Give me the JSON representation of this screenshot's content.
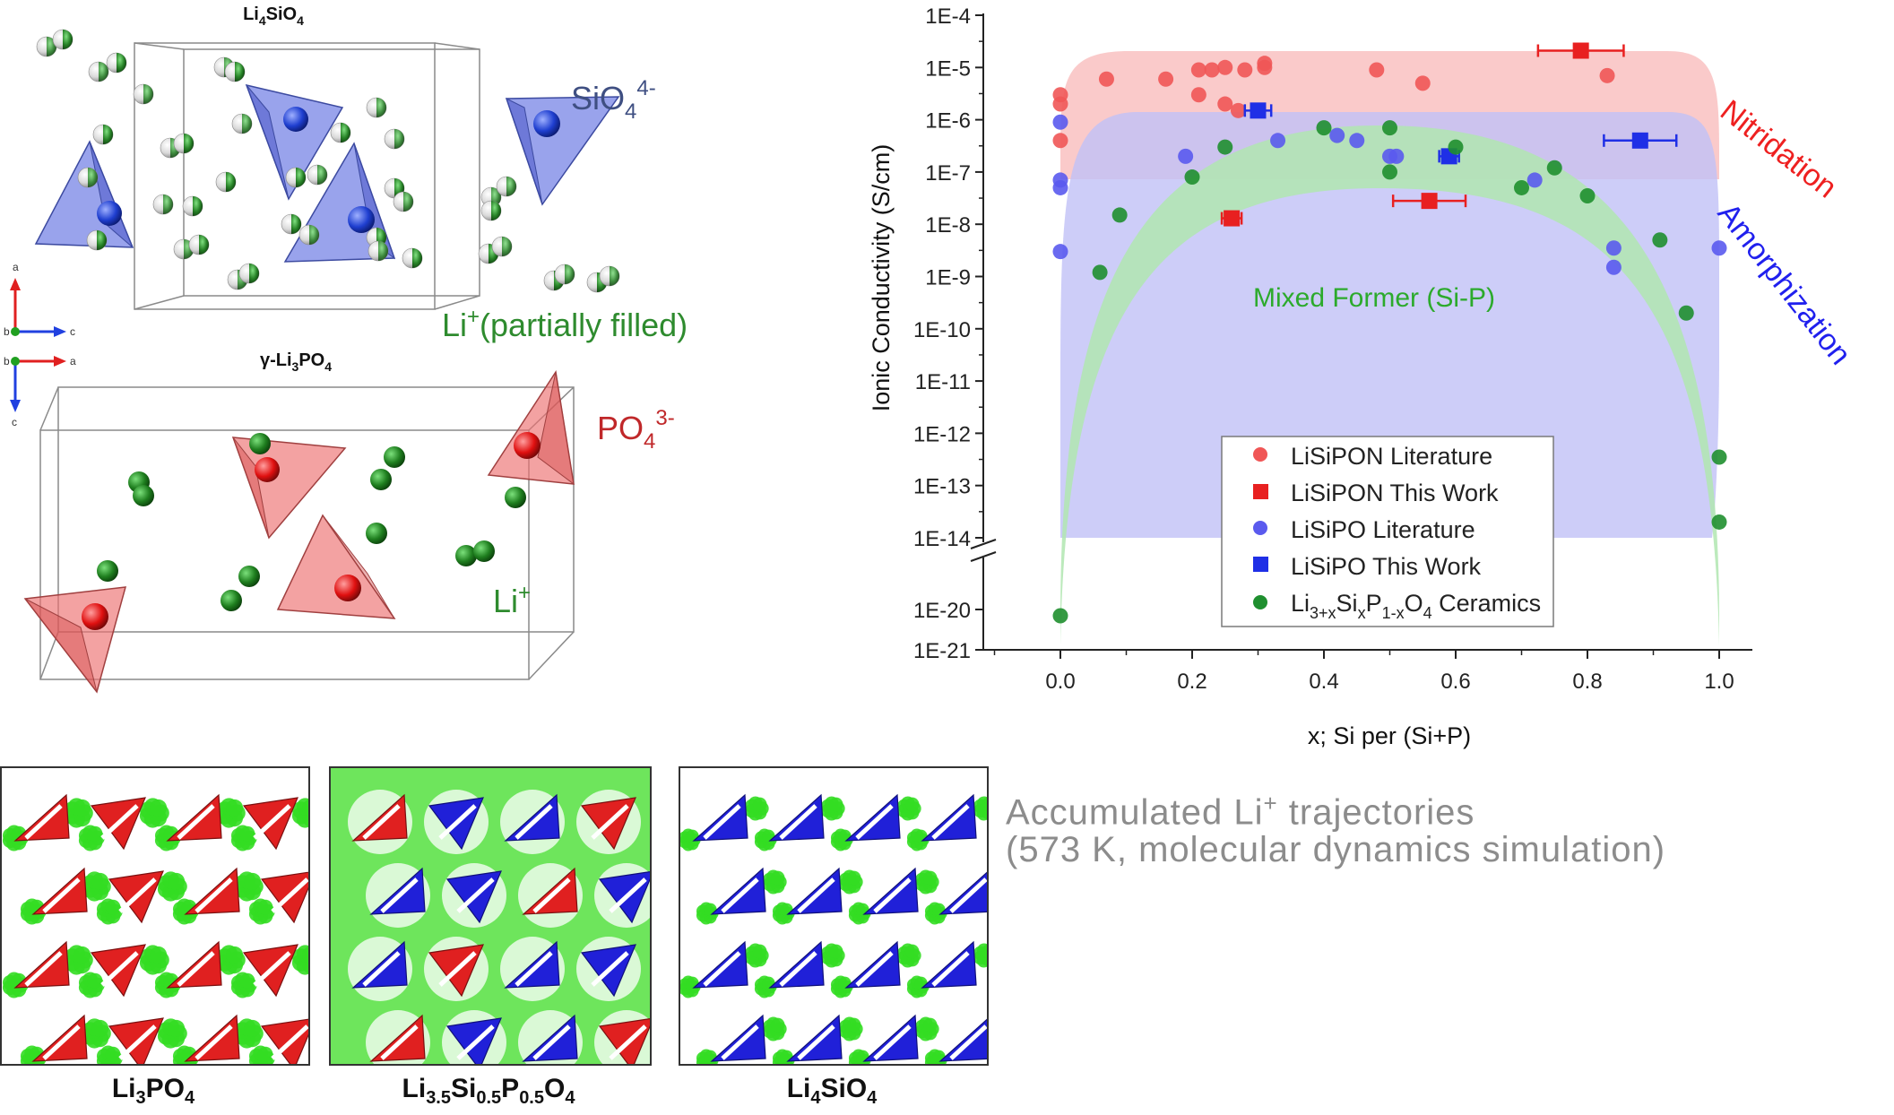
{
  "structures": {
    "top": {
      "title": "Li4SiO4",
      "title_parts": {
        "base": "Li",
        "s1": "4",
        "mid": "SiO",
        "s2": "4"
      },
      "ion_label": {
        "base": "SiO",
        "sub": "4",
        "sup": "4-"
      },
      "li_label": {
        "base": "Li",
        "sup": "+",
        "text": "(partially filled)"
      },
      "axes": {
        "up": "a",
        "right": "c",
        "center": "b"
      }
    },
    "bottom": {
      "title": "γ-Li3PO4",
      "title_parts": {
        "pre": "γ-Li",
        "s1": "3",
        "mid": "PO",
        "s2": "4"
      },
      "ion_label": {
        "base": "PO",
        "sub": "4",
        "sup": "3-"
      },
      "li_label": {
        "base": "Li",
        "sup": "+"
      },
      "axes": {
        "right": "a",
        "down": "c",
        "center": "b"
      }
    },
    "colors": {
      "sio4": "#4f5fd6",
      "po4": "#e8605e",
      "li": "#2e8b2e"
    }
  },
  "chart_data": {
    "type": "scatter",
    "xlabel": "x; Si per (Si+P)",
    "ylabel": "Ionic Conductivity (S/cm)",
    "xlim": [
      -0.1,
      1.05
    ],
    "x_ticks": [
      "0.0",
      "0.2",
      "0.4",
      "0.6",
      "0.8",
      "1.0"
    ],
    "y_axis_broken": true,
    "ylim_upper": [
      1e-14,
      0.0001
    ],
    "ylim_lower": [
      1e-21,
      1e-20
    ],
    "y_ticks": [
      "1E-4",
      "1E-5",
      "1E-6",
      "1E-7",
      "1E-8",
      "1E-9",
      "1E-10",
      "1E-11",
      "1E-12",
      "1E-13",
      "1E-14",
      "1E-20",
      "1E-21"
    ],
    "bands": [
      {
        "label": "Nitridation",
        "color": "#f08080"
      },
      {
        "label": "Amorphization",
        "color": "#8080f0"
      },
      {
        "label": "Mixed Former (Si-P)",
        "color": "#5cc85c"
      }
    ],
    "legend_position": "lower-center",
    "series": [
      {
        "name": "LiSiPON Literature",
        "marker": "circle",
        "color": "#f05656",
        "points": [
          [
            0.0,
            3e-06
          ],
          [
            0.0,
            2e-06
          ],
          [
            0.0,
            4e-07
          ],
          [
            0.07,
            6e-06
          ],
          [
            0.16,
            6e-06
          ],
          [
            0.21,
            9e-06
          ],
          [
            0.23,
            9e-06
          ],
          [
            0.25,
            1e-05
          ],
          [
            0.28,
            9e-06
          ],
          [
            0.31,
            1.2e-05
          ],
          [
            0.31,
            1e-05
          ],
          [
            0.21,
            3e-06
          ],
          [
            0.25,
            2e-06
          ],
          [
            0.27,
            1.5e-06
          ],
          [
            0.48,
            9e-06
          ],
          [
            0.55,
            5e-06
          ],
          [
            0.83,
            7e-06
          ]
        ]
      },
      {
        "name": "LiSiPON This Work",
        "marker": "square",
        "color": "#e82020",
        "points": [
          [
            0.79,
            2.1e-05,
            0.065
          ],
          [
            0.26,
            1.3e-08,
            0.015
          ],
          [
            0.56,
            2.8e-08,
            0.055
          ]
        ]
      },
      {
        "name": "LiSiPO Literature",
        "marker": "circle",
        "color": "#5a5aee",
        "points": [
          [
            0.0,
            9e-07
          ],
          [
            0.0,
            7e-08
          ],
          [
            0.0,
            5e-08
          ],
          [
            0.0,
            3e-09
          ],
          [
            0.19,
            2e-07
          ],
          [
            0.33,
            4e-07
          ],
          [
            0.42,
            5e-07
          ],
          [
            0.45,
            4e-07
          ],
          [
            0.5,
            2e-07
          ],
          [
            0.51,
            2e-07
          ],
          [
            0.72,
            7e-08
          ],
          [
            0.84,
            3.5e-09
          ],
          [
            0.84,
            1.5e-09
          ],
          [
            1.0,
            3.5e-09
          ]
        ]
      },
      {
        "name": "LiSiPO This Work",
        "marker": "square",
        "color": "#1f2fe6",
        "points": [
          [
            0.3,
            1.5e-06,
            0.02
          ],
          [
            0.88,
            4e-07,
            0.055
          ],
          [
            0.59,
            2e-07,
            0.015
          ]
        ]
      },
      {
        "name": "Li3+xSixP1-xO4 Ceramics",
        "name_parts": {
          "a": "Li",
          "s1": "3+x",
          "b": "Si",
          "s2": "x",
          "c": "P",
          "s3": "1-x",
          "d": "O",
          "s4": "4",
          "e": " Ceramics"
        },
        "marker": "circle",
        "color": "#1f8f2f",
        "points": [
          [
            0.0,
            7e-21
          ],
          [
            0.06,
            1.2e-09
          ],
          [
            0.09,
            1.5e-08
          ],
          [
            0.2,
            8e-08
          ],
          [
            0.25,
            3e-07
          ],
          [
            0.4,
            7e-07
          ],
          [
            0.5,
            7e-07
          ],
          [
            0.5,
            1e-07
          ],
          [
            0.6,
            3e-07
          ],
          [
            0.7,
            5e-08
          ],
          [
            0.75,
            1.2e-07
          ],
          [
            0.8,
            3.5e-08
          ],
          [
            0.91,
            5e-09
          ],
          [
            0.95,
            2e-10
          ],
          [
            1.0,
            3.5e-13
          ],
          [
            1.0,
            2e-14
          ]
        ]
      }
    ]
  },
  "md": {
    "caption_line1_a": "Accumulated  Li",
    "caption_line1_sup": "+",
    "caption_line1_b": " trajectories",
    "caption_line2": "(573 K, molecular  dynamics  simulation)",
    "panels": [
      {
        "label_parts": {
          "a": "Li",
          "s1": "3",
          "b": "PO",
          "s2": "4"
        },
        "label": "Li3PO4"
      },
      {
        "label_parts": {
          "a": "Li",
          "s1": "3.5",
          "b": "Si",
          "s2": "0.5",
          "c": "P",
          "s3": "0.5",
          "d": "O",
          "s4": "4"
        },
        "label": "Li3.5Si0.5P0.5O4"
      },
      {
        "label_parts": {
          "a": "Li",
          "s1": "4",
          "b": "SiO",
          "s2": "4"
        },
        "label": "Li4SiO4"
      }
    ],
    "colors": {
      "li_cloud": "#33dd22",
      "po4": "#e02020",
      "sio4": "#2020d8"
    }
  }
}
